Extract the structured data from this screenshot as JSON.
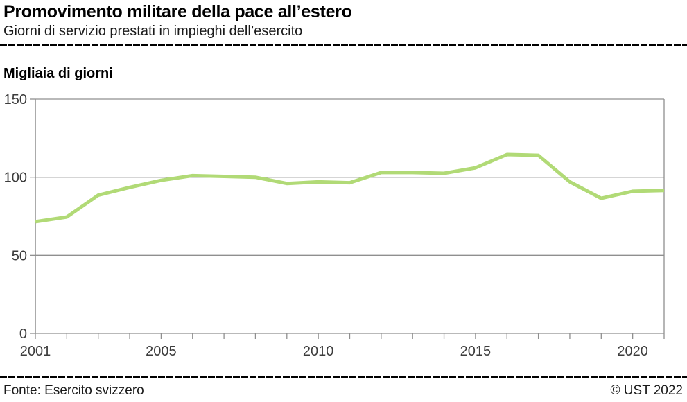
{
  "chart_data": {
    "type": "line",
    "title": "Promovimento militare della pace all’estero",
    "subtitle": "Giorni di servizio prestati in impieghi dell’esercito",
    "ylabel": "Migliaia di giorni",
    "xlabel": "",
    "x": [
      2001,
      2002,
      2003,
      2004,
      2005,
      2006,
      2007,
      2008,
      2009,
      2010,
      2011,
      2012,
      2013,
      2014,
      2015,
      2016,
      2017,
      2018,
      2019,
      2020,
      2021
    ],
    "values": [
      71.5,
      74.5,
      88.5,
      93.5,
      98,
      101,
      100.5,
      100,
      96,
      97,
      96.5,
      103,
      103,
      102.5,
      106,
      114.5,
      114,
      97,
      86.5,
      91,
      91.5
    ],
    "ylim": [
      0,
      150
    ],
    "yticks": [
      0,
      50,
      100,
      150
    ],
    "xticks": [
      2001,
      2005,
      2010,
      2015,
      2020
    ],
    "grid": true,
    "legend_position": "none",
    "colors": {
      "line": "#b1da76",
      "grid": "#8f8f8f",
      "axis": "#8f8f8f",
      "tick_text": "#3c3c3c"
    }
  },
  "footer": {
    "source": "Fonte: Esercito svizzero",
    "copyright": "© UST 2022"
  }
}
